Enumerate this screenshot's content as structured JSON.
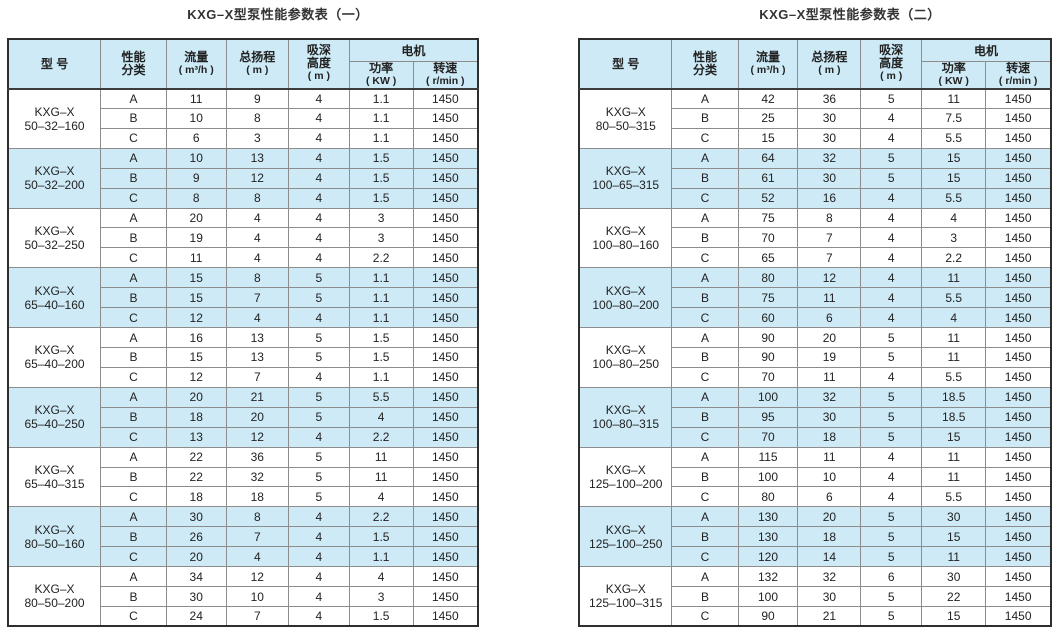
{
  "page": {
    "background": "#ffffff"
  },
  "colors": {
    "header_bg": "#cdeaf6",
    "band_bg": "#cdeaf6",
    "border_outer": "#2e2e2e",
    "border_inner": "#8c8c8c",
    "text": "#222222"
  },
  "headers": {
    "model": "型 号",
    "category": [
      "性能",
      "分类"
    ],
    "flow": [
      "流量",
      "( m³/h )"
    ],
    "head": [
      "总扬程",
      "( m )"
    ],
    "suction": [
      "吸深",
      "高度",
      "( m )"
    ],
    "motor": "电机",
    "power": [
      "功率",
      "( KW )"
    ],
    "speed": [
      "转速",
      "( r/min )"
    ]
  },
  "tables": [
    {
      "title": "KXG–X型泵性能参数表（一）",
      "groups": [
        {
          "model_line1": "KXG–X",
          "model_line2": "50–32–160",
          "rows": [
            [
              "A",
              "11",
              "9",
              "4",
              "1.1",
              "1450"
            ],
            [
              "B",
              "10",
              "8",
              "4",
              "1.1",
              "1450"
            ],
            [
              "C",
              "6",
              "3",
              "4",
              "1.1",
              "1450"
            ]
          ]
        },
        {
          "model_line1": "KXG–X",
          "model_line2": "50–32–200",
          "rows": [
            [
              "A",
              "10",
              "13",
              "4",
              "1.5",
              "1450"
            ],
            [
              "B",
              "9",
              "12",
              "4",
              "1.5",
              "1450"
            ],
            [
              "C",
              "8",
              "8",
              "4",
              "1.5",
              "1450"
            ]
          ]
        },
        {
          "model_line1": "KXG–X",
          "model_line2": "50–32–250",
          "rows": [
            [
              "A",
              "20",
              "4",
              "4",
              "3",
              "1450"
            ],
            [
              "B",
              "19",
              "4",
              "4",
              "3",
              "1450"
            ],
            [
              "C",
              "11",
              "4",
              "4",
              "2.2",
              "1450"
            ]
          ]
        },
        {
          "model_line1": "KXG–X",
          "model_line2": "65–40–160",
          "rows": [
            [
              "A",
              "15",
              "8",
              "5",
              "1.1",
              "1450"
            ],
            [
              "B",
              "15",
              "7",
              "5",
              "1.1",
              "1450"
            ],
            [
              "C",
              "12",
              "4",
              "4",
              "1.1",
              "1450"
            ]
          ]
        },
        {
          "model_line1": "KXG–X",
          "model_line2": "65–40–200",
          "rows": [
            [
              "A",
              "16",
              "13",
              "5",
              "1.5",
              "1450"
            ],
            [
              "B",
              "15",
              "13",
              "5",
              "1.5",
              "1450"
            ],
            [
              "C",
              "12",
              "7",
              "4",
              "1.1",
              "1450"
            ]
          ]
        },
        {
          "model_line1": "KXG–X",
          "model_line2": "65–40–250",
          "rows": [
            [
              "A",
              "20",
              "21",
              "5",
              "5.5",
              "1450"
            ],
            [
              "B",
              "18",
              "20",
              "5",
              "4",
              "1450"
            ],
            [
              "C",
              "13",
              "12",
              "4",
              "2.2",
              "1450"
            ]
          ]
        },
        {
          "model_line1": "KXG–X",
          "model_line2": "65–40–315",
          "rows": [
            [
              "A",
              "22",
              "36",
              "5",
              "11",
              "1450"
            ],
            [
              "B",
              "22",
              "32",
              "5",
              "11",
              "1450"
            ],
            [
              "C",
              "18",
              "18",
              "5",
              "4",
              "1450"
            ]
          ]
        },
        {
          "model_line1": "KXG–X",
          "model_line2": "80–50–160",
          "rows": [
            [
              "A",
              "30",
              "8",
              "4",
              "2.2",
              "1450"
            ],
            [
              "B",
              "26",
              "7",
              "4",
              "1.5",
              "1450"
            ],
            [
              "C",
              "20",
              "4",
              "4",
              "1.1",
              "1450"
            ]
          ]
        },
        {
          "model_line1": "KXG–X",
          "model_line2": "80–50–200",
          "rows": [
            [
              "A",
              "34",
              "12",
              "4",
              "4",
              "1450"
            ],
            [
              "B",
              "30",
              "10",
              "4",
              "3",
              "1450"
            ],
            [
              "C",
              "24",
              "7",
              "4",
              "1.5",
              "1450"
            ]
          ]
        }
      ]
    },
    {
      "title": "KXG–X型泵性能参数表（二）",
      "groups": [
        {
          "model_line1": "KXG–X",
          "model_line2": "80–50–315",
          "rows": [
            [
              "A",
              "42",
              "36",
              "5",
              "11",
              "1450"
            ],
            [
              "B",
              "25",
              "30",
              "4",
              "7.5",
              "1450"
            ],
            [
              "C",
              "15",
              "30",
              "4",
              "5.5",
              "1450"
            ]
          ]
        },
        {
          "model_line1": "KXG–X",
          "model_line2": "100–65–315",
          "rows": [
            [
              "A",
              "64",
              "32",
              "5",
              "15",
              "1450"
            ],
            [
              "B",
              "61",
              "30",
              "5",
              "15",
              "1450"
            ],
            [
              "C",
              "52",
              "16",
              "4",
              "5.5",
              "1450"
            ]
          ]
        },
        {
          "model_line1": "KXG–X",
          "model_line2": "100–80–160",
          "rows": [
            [
              "A",
              "75",
              "8",
              "4",
              "4",
              "1450"
            ],
            [
              "B",
              "70",
              "7",
              "4",
              "3",
              "1450"
            ],
            [
              "C",
              "65",
              "7",
              "4",
              "2.2",
              "1450"
            ]
          ]
        },
        {
          "model_line1": "KXG–X",
          "model_line2": "100–80–200",
          "rows": [
            [
              "A",
              "80",
              "12",
              "4",
              "11",
              "1450"
            ],
            [
              "B",
              "75",
              "11",
              "4",
              "5.5",
              "1450"
            ],
            [
              "C",
              "60",
              "6",
              "4",
              "4",
              "1450"
            ]
          ]
        },
        {
          "model_line1": "KXG–X",
          "model_line2": "100–80–250",
          "rows": [
            [
              "A",
              "90",
              "20",
              "5",
              "11",
              "1450"
            ],
            [
              "B",
              "90",
              "19",
              "5",
              "11",
              "1450"
            ],
            [
              "C",
              "70",
              "11",
              "4",
              "5.5",
              "1450"
            ]
          ]
        },
        {
          "model_line1": "KXG–X",
          "model_line2": "100–80–315",
          "rows": [
            [
              "A",
              "100",
              "32",
              "5",
              "18.5",
              "1450"
            ],
            [
              "B",
              "95",
              "30",
              "5",
              "18.5",
              "1450"
            ],
            [
              "C",
              "70",
              "18",
              "5",
              "15",
              "1450"
            ]
          ]
        },
        {
          "model_line1": "KXG–X",
          "model_line2": "125–100–200",
          "rows": [
            [
              "A",
              "115",
              "11",
              "4",
              "11",
              "1450"
            ],
            [
              "B",
              "100",
              "10",
              "4",
              "11",
              "1450"
            ],
            [
              "C",
              "80",
              "6",
              "4",
              "5.5",
              "1450"
            ]
          ]
        },
        {
          "model_line1": "KXG–X",
          "model_line2": "125–100–250",
          "rows": [
            [
              "A",
              "130",
              "20",
              "5",
              "30",
              "1450"
            ],
            [
              "B",
              "130",
              "18",
              "5",
              "15",
              "1450"
            ],
            [
              "C",
              "120",
              "14",
              "5",
              "11",
              "1450"
            ]
          ]
        },
        {
          "model_line1": "KXG–X",
          "model_line2": "125–100–315",
          "rows": [
            [
              "A",
              "132",
              "32",
              "6",
              "30",
              "1450"
            ],
            [
              "B",
              "100",
              "30",
              "5",
              "22",
              "1450"
            ],
            [
              "C",
              "90",
              "21",
              "5",
              "15",
              "1450"
            ]
          ]
        }
      ]
    }
  ]
}
